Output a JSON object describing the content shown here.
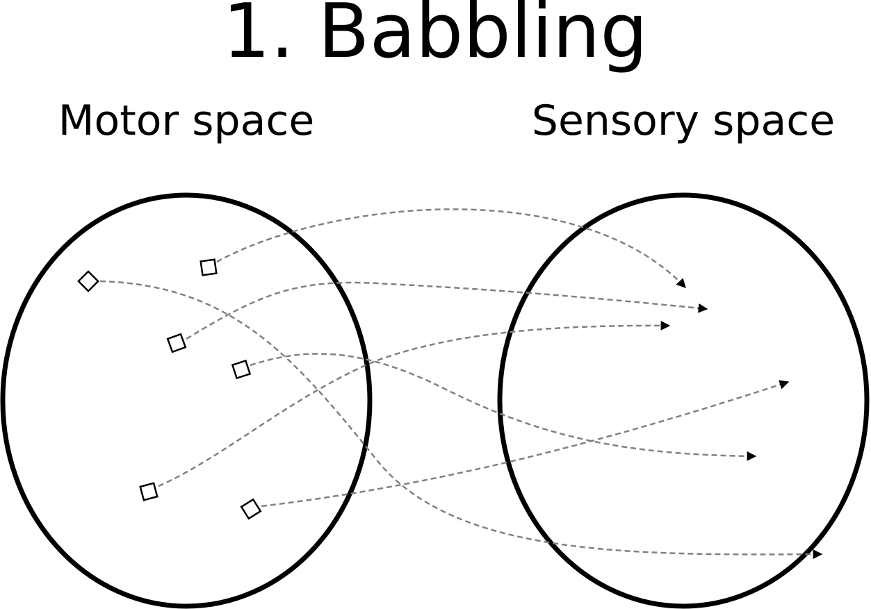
{
  "title": "1. Babbling",
  "motor_space": {
    "label": "Motor space"
  },
  "sensory_space": {
    "label": "Sensory space"
  },
  "colors": {
    "outline": "#000000",
    "link": "#808080",
    "background": "#ffffff"
  }
}
